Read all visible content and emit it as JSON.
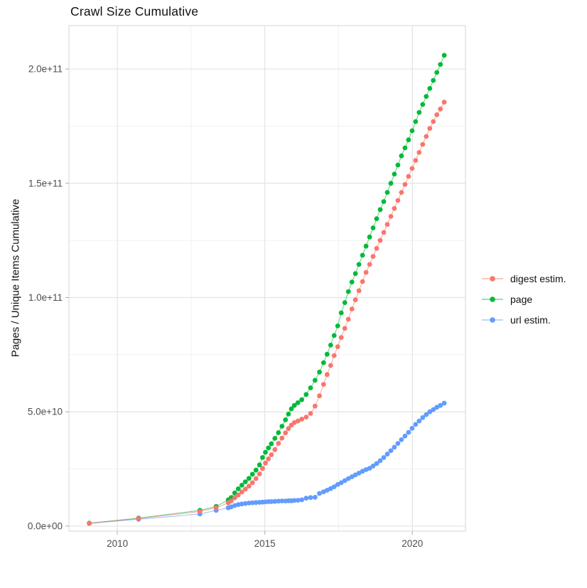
{
  "title": "Crawl Size Cumulative",
  "chart_data": {
    "type": "scatter",
    "title": "Crawl Size Cumulative",
    "xlabel": "",
    "ylabel": "Pages / Unique Items Cumulative",
    "value_unit": "billions (1e9)",
    "legend_position": "right",
    "grid": true,
    "x_axis": {
      "lim": [
        2008.36,
        2021.8
      ],
      "ticks": [
        2010,
        2015,
        2020
      ],
      "tick_labels": [
        "2010",
        "2015",
        "2020"
      ],
      "minor_ticks": [
        2012.5,
        2017.5
      ]
    },
    "y_axis": {
      "lim_billions": [
        -2.2,
        219.0
      ],
      "ticks_billions": [
        0,
        50,
        100,
        150,
        200
      ],
      "tick_labels": [
        "0.0e+00",
        "5.0e+10",
        "1.0e+11",
        "1.5e+11",
        "2.0e+11"
      ],
      "minor_ticks_billions": [
        25,
        75,
        125,
        175
      ]
    },
    "x_years": [
      2009.05,
      2010.72,
      2012.8,
      2013.35,
      2013.76,
      2013.86,
      2013.98,
      2014.1,
      2014.22,
      2014.34,
      2014.46,
      2014.58,
      2014.7,
      2014.82,
      2014.92,
      2015.02,
      2015.12,
      2015.22,
      2015.34,
      2015.46,
      2015.58,
      2015.7,
      2015.8,
      2015.9,
      2016.0,
      2016.12,
      2016.25,
      2016.4,
      2016.55,
      2016.7,
      2016.85,
      2016.99,
      2017.11,
      2017.23,
      2017.35,
      2017.47,
      2017.59,
      2017.71,
      2017.83,
      2017.95,
      2018.07,
      2018.19,
      2018.31,
      2018.43,
      2018.55,
      2018.67,
      2018.79,
      2018.91,
      2019.03,
      2019.15,
      2019.27,
      2019.39,
      2019.51,
      2019.63,
      2019.75,
      2019.87,
      2019.99,
      2020.11,
      2020.23,
      2020.35,
      2020.47,
      2020.59,
      2020.71,
      2020.83,
      2020.95,
      2021.08
    ],
    "series": [
      {
        "name": "url estim.",
        "color": "#619CFF",
        "values_billions": [
          1.2,
          3.0,
          5.3,
          6.9,
          8.0,
          8.4,
          9.0,
          9.4,
          9.7,
          9.9,
          10.1,
          10.2,
          10.3,
          10.4,
          10.5,
          10.6,
          10.7,
          10.7,
          10.8,
          10.9,
          11.0,
          11.0,
          11.1,
          11.1,
          11.2,
          11.3,
          11.5,
          12.2,
          12.5,
          12.6,
          14.3,
          15.0,
          15.7,
          16.4,
          17.2,
          18.2,
          19.0,
          19.9,
          20.8,
          21.6,
          22.4,
          23.2,
          24.0,
          24.7,
          25.3,
          26.3,
          27.4,
          28.6,
          30.0,
          31.5,
          33.0,
          34.5,
          36.2,
          37.8,
          39.4,
          41.0,
          42.8,
          44.5,
          46.0,
          47.5,
          48.8,
          50.0,
          51.0,
          52.0,
          52.8,
          53.8
        ]
      },
      {
        "name": "page",
        "color": "#00BA38",
        "values_billions": [
          1.3,
          3.5,
          6.9,
          8.6,
          11.5,
          12.5,
          14.5,
          16.3,
          17.9,
          19.4,
          20.9,
          22.7,
          24.5,
          26.8,
          30.0,
          32.3,
          34.2,
          36.0,
          38.4,
          40.9,
          43.7,
          46.5,
          49.0,
          51.3,
          52.8,
          54.0,
          55.3,
          57.6,
          60.5,
          63.8,
          67.4,
          71.5,
          75.2,
          79.2,
          83.4,
          87.6,
          93.3,
          97.8,
          102.6,
          106.8,
          110.5,
          114.5,
          118.5,
          122.5,
          126.5,
          130.5,
          134.5,
          138.5,
          142.0,
          146.0,
          150.0,
          154.0,
          158.0,
          162.0,
          165.5,
          169.0,
          173.0,
          177.0,
          181.0,
          184.5,
          188.0,
          191.5,
          195.0,
          198.5,
          202.0,
          206.0
        ]
      },
      {
        "name": "digest estim.",
        "color": "#F8766D",
        "values_billions": [
          1.2,
          3.3,
          6.4,
          8.0,
          10.2,
          11.0,
          12.4,
          13.6,
          14.9,
          16.2,
          17.5,
          19.0,
          20.8,
          22.8,
          25.2,
          27.6,
          29.4,
          31.2,
          33.5,
          36.2,
          38.5,
          40.8,
          42.7,
          44.2,
          45.3,
          46.0,
          46.8,
          47.7,
          49.3,
          52.5,
          57.0,
          62.0,
          66.3,
          70.3,
          74.6,
          78.5,
          82.5,
          86.5,
          90.5,
          95.0,
          99.0,
          103.0,
          107.0,
          111.0,
          114.5,
          118.0,
          121.5,
          125.0,
          128.5,
          132.0,
          135.5,
          139.0,
          142.5,
          146.0,
          149.5,
          153.0,
          156.5,
          160.0,
          163.5,
          167.0,
          170.5,
          174.0,
          177.0,
          180.0,
          182.5,
          185.5
        ]
      }
    ],
    "legend_order": [
      "digest estim.",
      "page",
      "url estim."
    ]
  },
  "styles": {
    "grid_major_color": "#E3E3E3",
    "grid_minor_color": "#EFEFEF",
    "panel_border_color": "#D6D6D6",
    "tick_mark_color": "#ADADAD",
    "tick_label_color": "#4D4D4D",
    "palette": {
      "digest": "#F8766D",
      "page": "#00BA38",
      "url": "#619CFF"
    }
  }
}
